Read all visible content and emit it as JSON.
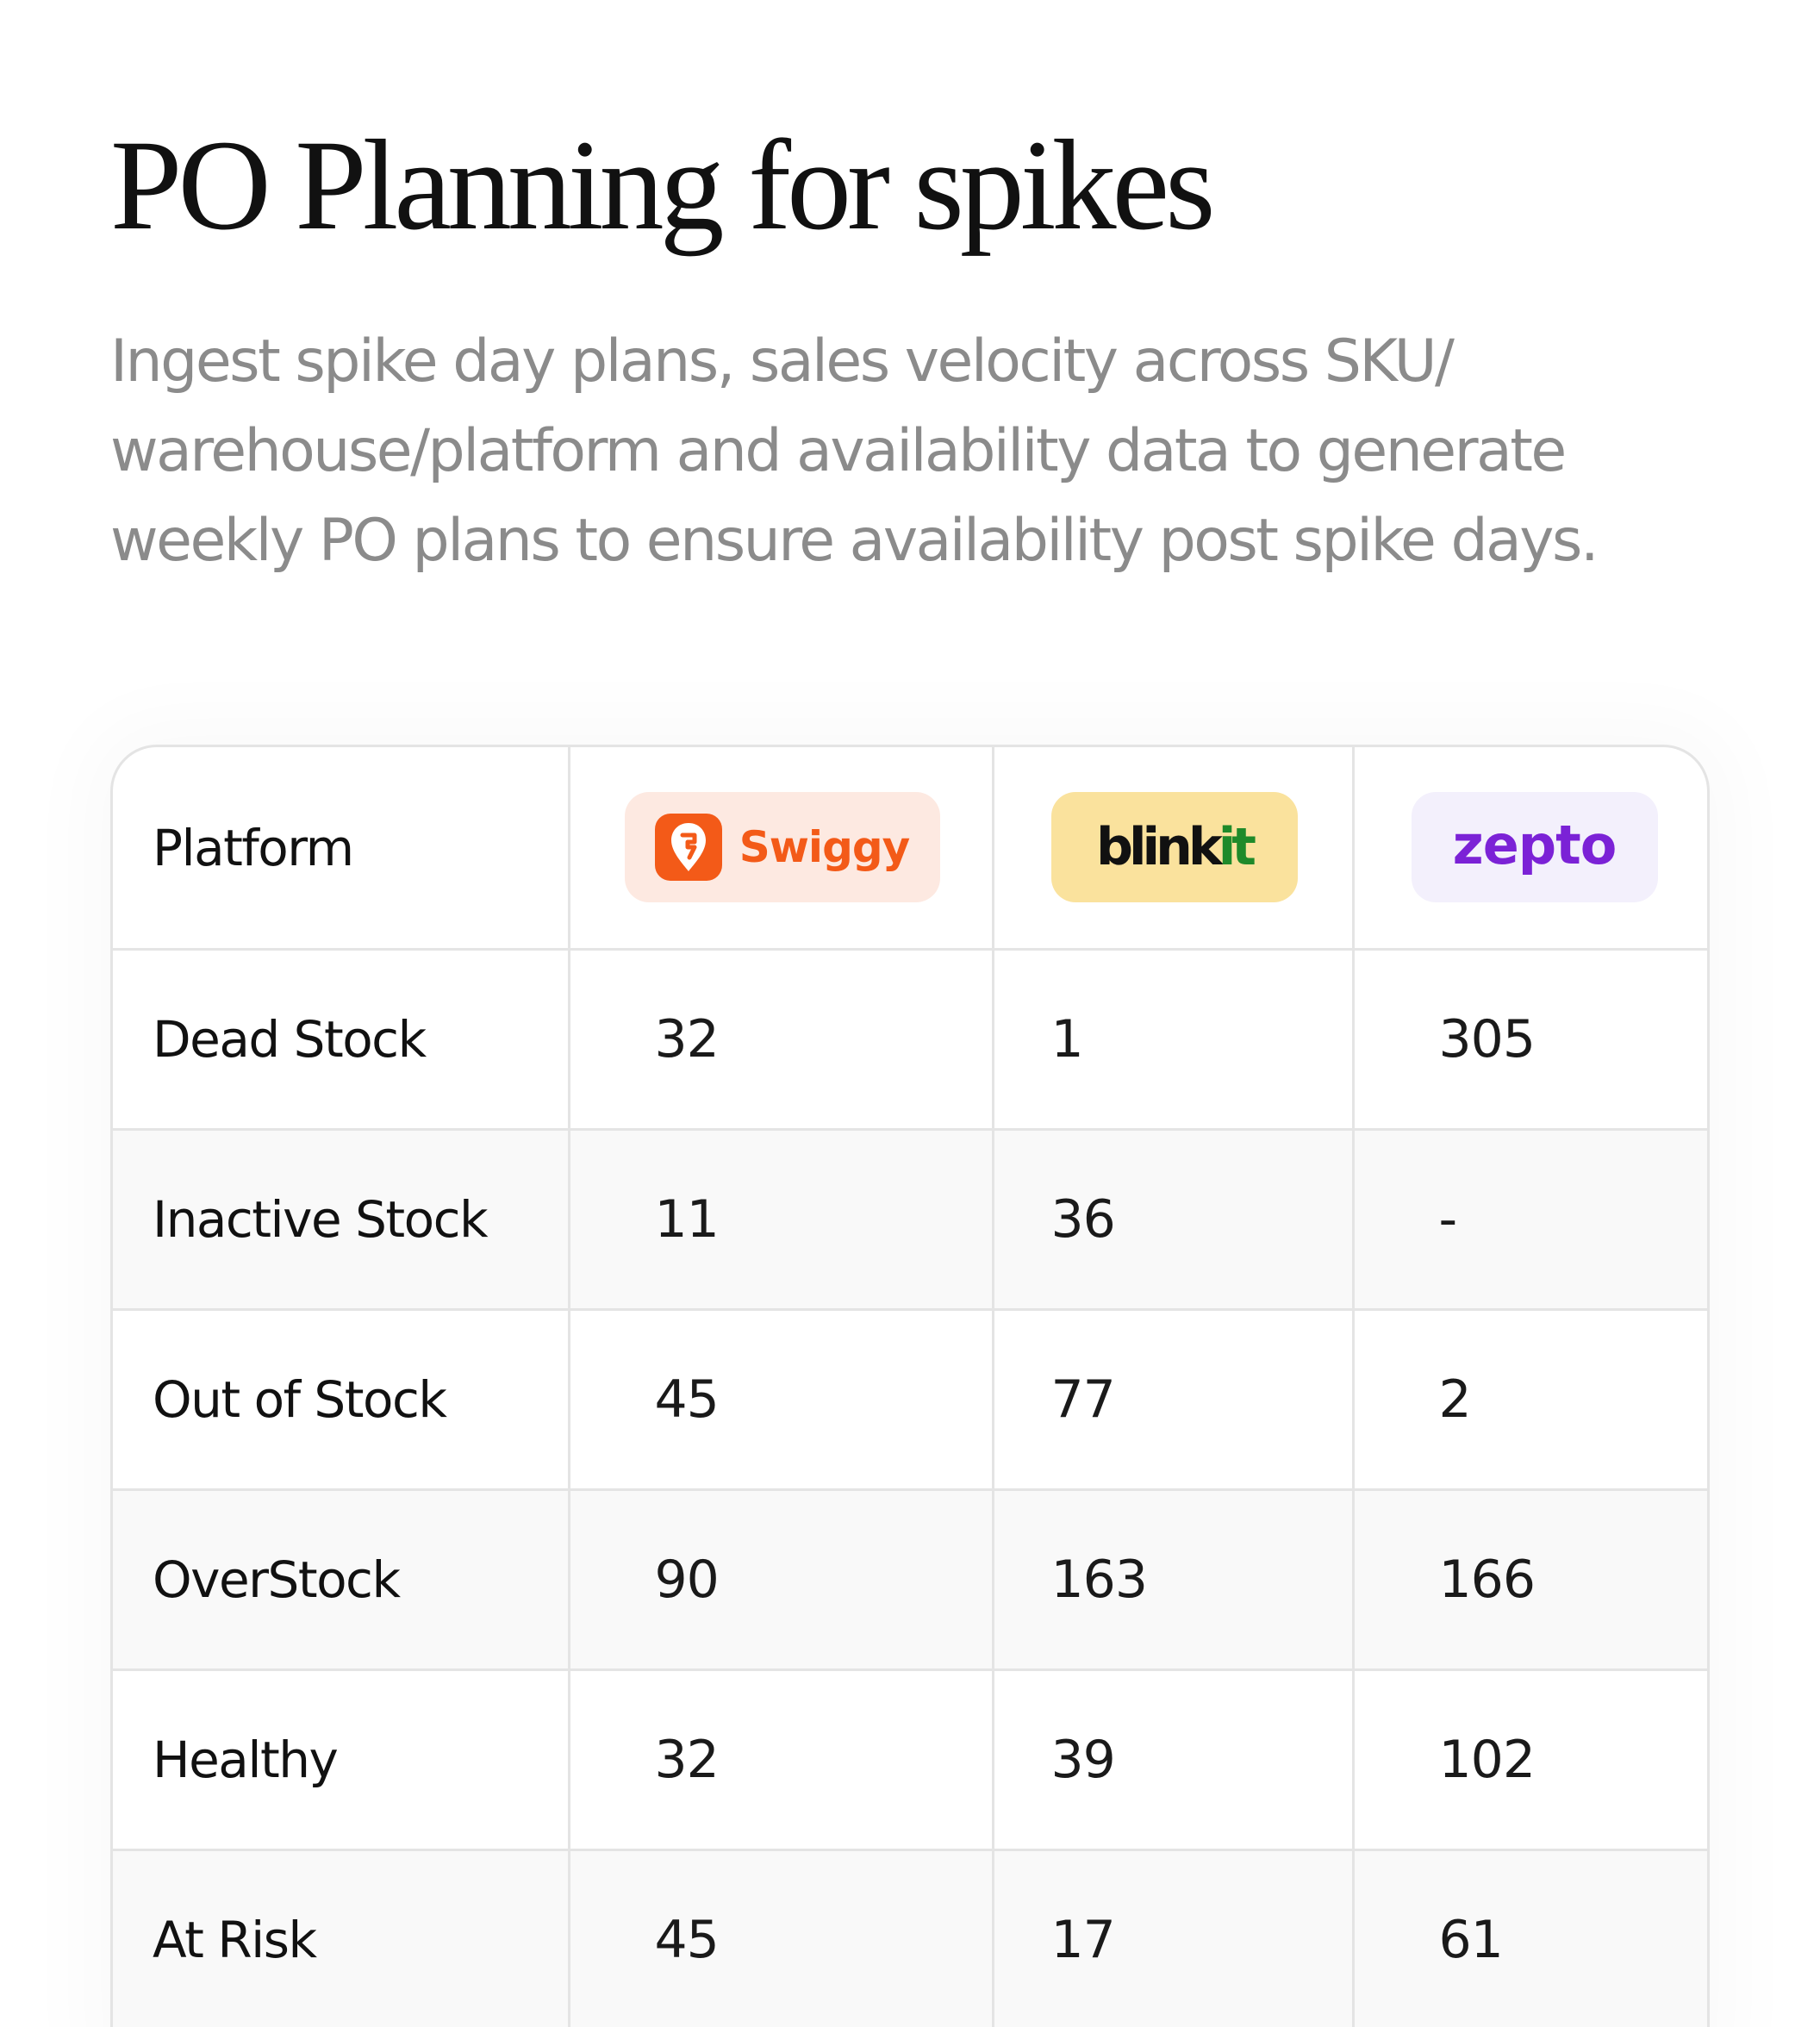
{
  "header": {
    "title": "PO Planning for spikes",
    "description": "Ingest spike day plans, sales velocity across SKU/ warehouse/platform and availability data to generate weekly PO plans to ensure availability post spike days."
  },
  "table": {
    "header_label": "Platform",
    "platforms": [
      {
        "name": "Swiggy",
        "logo_text": "Swiggy",
        "brand_color": "#f35a18",
        "badge_color": "#fde9e1",
        "icon": "swiggy-pin-icon"
      },
      {
        "name": "blinkit",
        "logo_text_main": "blink",
        "logo_text_accent": "it",
        "brand_color": "#111111",
        "accent_color": "#1f8a2a",
        "badge_color": "#fae29d"
      },
      {
        "name": "zepto",
        "logo_text": "zepto",
        "brand_color": "#7b22d6",
        "badge_color": "#f3f0fc"
      }
    ],
    "rows": [
      {
        "label": "Dead Stock",
        "values": [
          "32",
          "1",
          "305"
        ]
      },
      {
        "label": "Inactive Stock",
        "values": [
          "11",
          "36",
          "-"
        ]
      },
      {
        "label": "Out of Stock",
        "values": [
          "45",
          "77",
          "2"
        ]
      },
      {
        "label": "OverStock",
        "values": [
          "90",
          "163",
          "166"
        ]
      },
      {
        "label": "Healthy",
        "values": [
          "32",
          "39",
          "102"
        ]
      },
      {
        "label": "At Risk",
        "values": [
          "45",
          "17",
          "61"
        ]
      }
    ]
  }
}
